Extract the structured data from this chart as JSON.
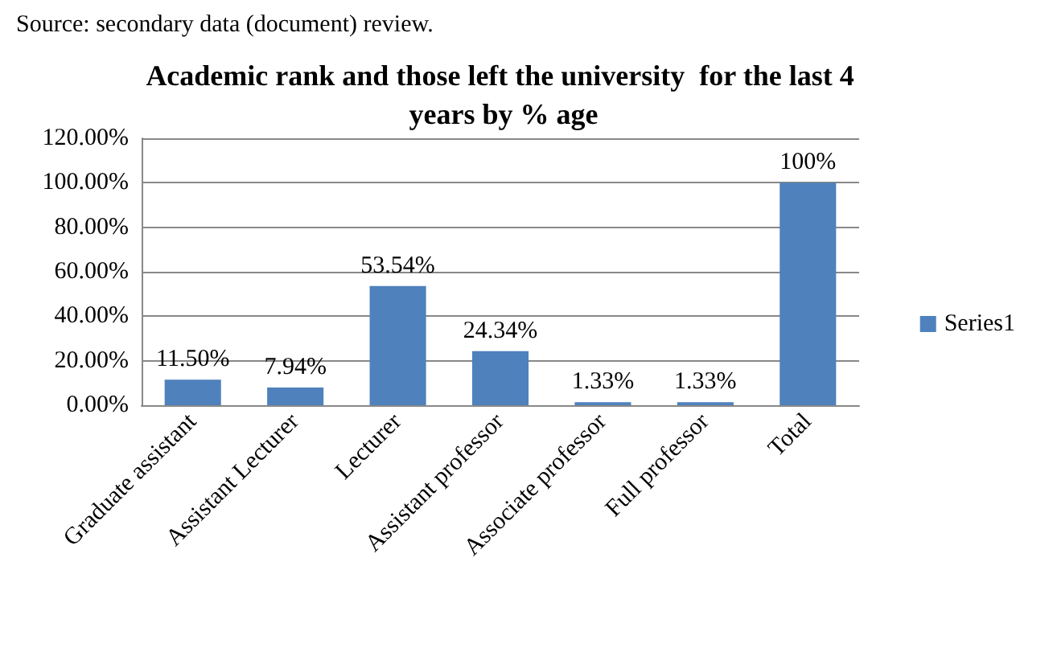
{
  "chart_data": {
    "type": "bar",
    "title": "Academic rank and those left the university  for the last 4 years by % age",
    "annotations": [
      "Source: secondary data (document) review."
    ],
    "categories": [
      "Graduate assistant",
      "Assistant Lecturer",
      "Lecturer",
      "Assistant professor",
      "Associate professor",
      "Full professor",
      "Total"
    ],
    "series": [
      {
        "name": "Series1",
        "color": "#4f81bd",
        "values": [
          11.5,
          7.94,
          53.54,
          24.34,
          1.33,
          1.33,
          100
        ],
        "value_labels": [
          "11.50%",
          "7.94%",
          "53.54%",
          "24.34%",
          "1.33%",
          "1.33%",
          "100%"
        ]
      }
    ],
    "ylim": [
      0,
      120
    ],
    "yticks": [
      {
        "value": 0,
        "label": "0.00%"
      },
      {
        "value": 20,
        "label": "20.00%"
      },
      {
        "value": 40,
        "label": "40.00%"
      },
      {
        "value": 60,
        "label": "60.00%"
      },
      {
        "value": 80,
        "label": "80.00%"
      },
      {
        "value": 100,
        "label": "100.00%"
      },
      {
        "value": 120,
        "label": "120.00%"
      }
    ],
    "grid": "y",
    "legend": "right"
  }
}
